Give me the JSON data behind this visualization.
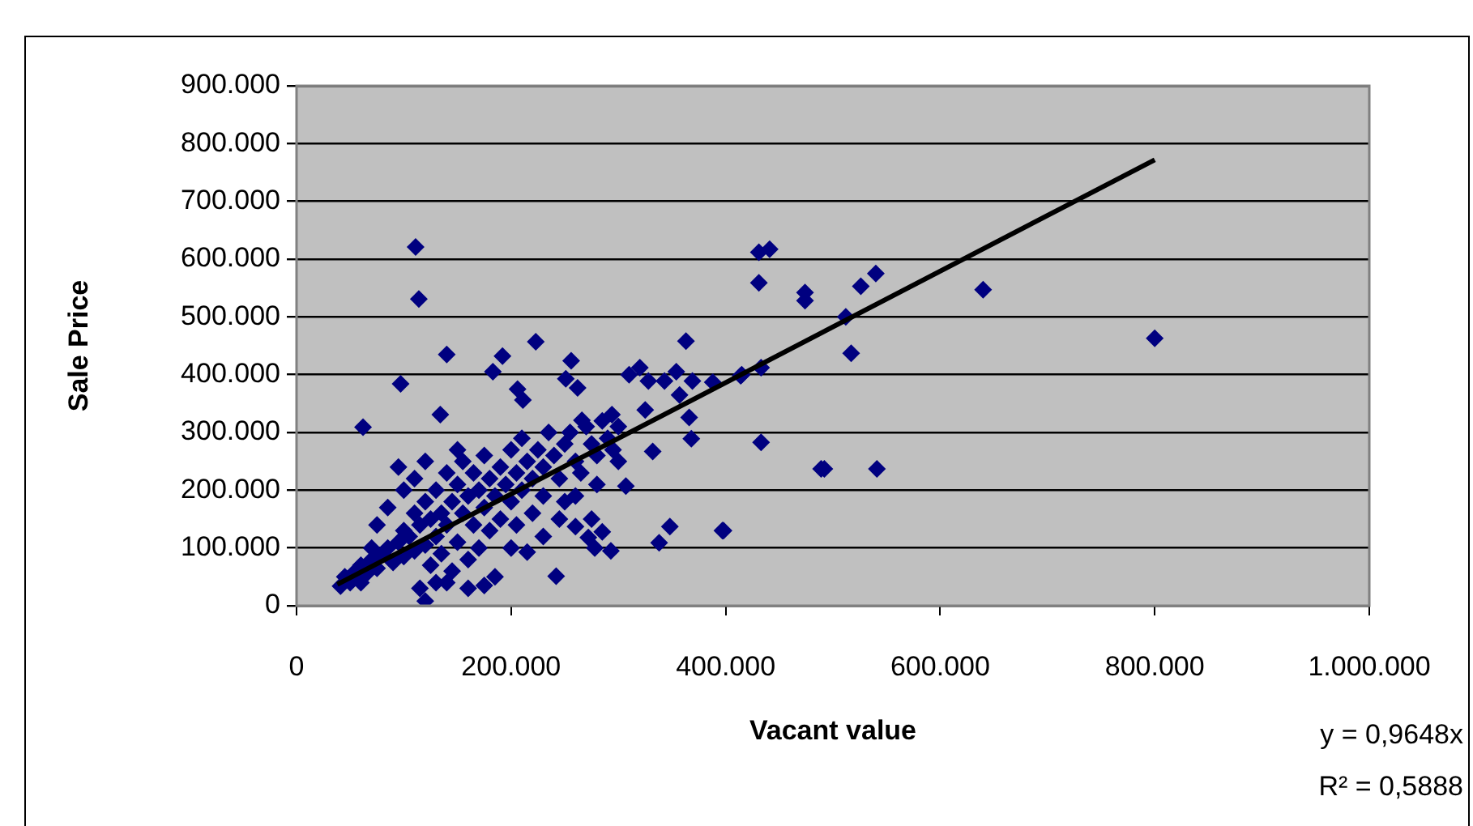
{
  "chart_data": {
    "type": "scatter",
    "xlabel": "Vacant value",
    "ylabel": "Sale Price",
    "xlim": [
      0,
      1000000
    ],
    "xticks": [
      0,
      {
        "value": 200000,
        "label": "200.000"
      },
      {
        "value": 400000,
        "label": "400.000"
      },
      {
        "value": 600000,
        "label": "600.000"
      },
      {
        "value": 800000,
        "label": "800.000"
      },
      {
        "value": 1000000,
        "label": "1.000.000"
      }
    ],
    "ylim": [
      0,
      900000
    ],
    "yticks": [
      0,
      {
        "value": 100000,
        "label": "100.000"
      },
      {
        "value": 200000,
        "label": "200.000"
      },
      {
        "value": 300000,
        "label": "300.000"
      },
      {
        "value": 400000,
        "label": "400.000"
      },
      {
        "value": 500000,
        "label": "500.000"
      },
      {
        "value": 600000,
        "label": "600.000"
      },
      {
        "value": 700000,
        "label": "700.000"
      },
      {
        "value": 800000,
        "label": "800.000"
      },
      {
        "value": 900000,
        "label": "900.000"
      }
    ],
    "grid": "y",
    "legend": false,
    "marker": "diamond",
    "series": [
      {
        "color": "#000080",
        "x": [
          111000,
          114000,
          140000,
          97000,
          62000,
          134000,
          223000,
          192000,
          183000,
          206000,
          211000,
          256000,
          251000,
          262000,
          266000,
          294000,
          320000,
          310000,
          328000,
          343000,
          354000,
          363000,
          369000,
          357000,
          366000,
          368000,
          332000,
          325000,
          307000,
          348000,
          338000,
          397000,
          285000,
          293000,
          278000,
          242000,
          215000,
          120000,
          41000,
          260000,
          272000,
          388000,
          414000,
          433000,
          433000,
          431000,
          431000,
          441000,
          474000,
          474000,
          489000,
          512000,
          517000,
          526000,
          540000,
          640000,
          800000,
          492000,
          541000,
          398000,
          415000,
          45000,
          50000,
          55000,
          60000,
          65000,
          70000,
          75000,
          80000,
          85000,
          90000,
          95000,
          100000,
          100000,
          105000,
          110000,
          110000,
          115000,
          120000,
          120000,
          125000,
          125000,
          130000,
          130000,
          135000,
          135000,
          140000,
          140000,
          145000,
          145000,
          150000,
          150000,
          155000,
          155000,
          160000,
          160000,
          165000,
          165000,
          170000,
          170000,
          175000,
          175000,
          180000,
          180000,
          185000,
          185000,
          190000,
          190000,
          195000,
          200000,
          200000,
          205000,
          205000,
          210000,
          210000,
          215000,
          220000,
          220000,
          225000,
          230000,
          230000,
          235000,
          240000,
          245000,
          250000,
          250000,
          255000,
          260000,
          265000,
          270000,
          275000,
          280000,
          285000,
          290000,
          295000,
          300000,
          300000,
          95000,
          85000,
          75000,
          100000,
          120000,
          140000,
          160000,
          130000,
          175000,
          200000,
          115000,
          110000,
          60000,
          70000,
          150000,
          230000,
          245000,
          260000,
          280000,
          275000
        ],
        "values": [
          621000,
          531000,
          435000,
          384000,
          309000,
          331000,
          457000,
          432000,
          405000,
          375000,
          356000,
          424000,
          393000,
          377000,
          321000,
          331000,
          412000,
          400000,
          389000,
          389000,
          405000,
          458000,
          389000,
          365000,
          326000,
          289000,
          267000,
          339000,
          207000,
          137000,
          109000,
          130000,
          128000,
          95000,
          100000,
          51000,
          93000,
          8000,
          34000,
          137000,
          118000,
          387000,
          398000,
          412000,
          283000,
          559000,
          612000,
          617000,
          542000,
          528000,
          237000,
          500000,
          437000,
          553000,
          575000,
          547000,
          463000,
          237000,
          237000,
          130000,
          400000,
          50000,
          40000,
          60000,
          70000,
          55000,
          80000,
          65000,
          90000,
          100000,
          75000,
          110000,
          85000,
          130000,
          120000,
          95000,
          160000,
          140000,
          105000,
          180000,
          150000,
          70000,
          120000,
          200000,
          160000,
          90000,
          140000,
          230000,
          180000,
          60000,
          210000,
          110000,
          160000,
          250000,
          190000,
          80000,
          140000,
          230000,
          200000,
          100000,
          170000,
          260000,
          220000,
          130000,
          190000,
          50000,
          240000,
          150000,
          210000,
          180000,
          270000,
          230000,
          140000,
          200000,
          290000,
          250000,
          220000,
          160000,
          270000,
          240000,
          190000,
          300000,
          260000,
          220000,
          280000,
          180000,
          300000,
          250000,
          230000,
          310000,
          280000,
          260000,
          320000,
          290000,
          270000,
          310000,
          250000,
          240000,
          170000,
          140000,
          200000,
          250000,
          40000,
          30000,
          40000,
          35000,
          100000,
          30000,
          220000,
          40000,
          100000,
          270000,
          120000,
          150000,
          190000,
          210000,
          150000
        ]
      },
      {
        "type": "line",
        "color": "#000000",
        "marker": "none",
        "x": [
          38000,
          800000
        ],
        "values": [
          37000,
          772000
        ]
      }
    ],
    "annotations": [
      "y = 0,9648x",
      "R² = 0,5888"
    ]
  }
}
